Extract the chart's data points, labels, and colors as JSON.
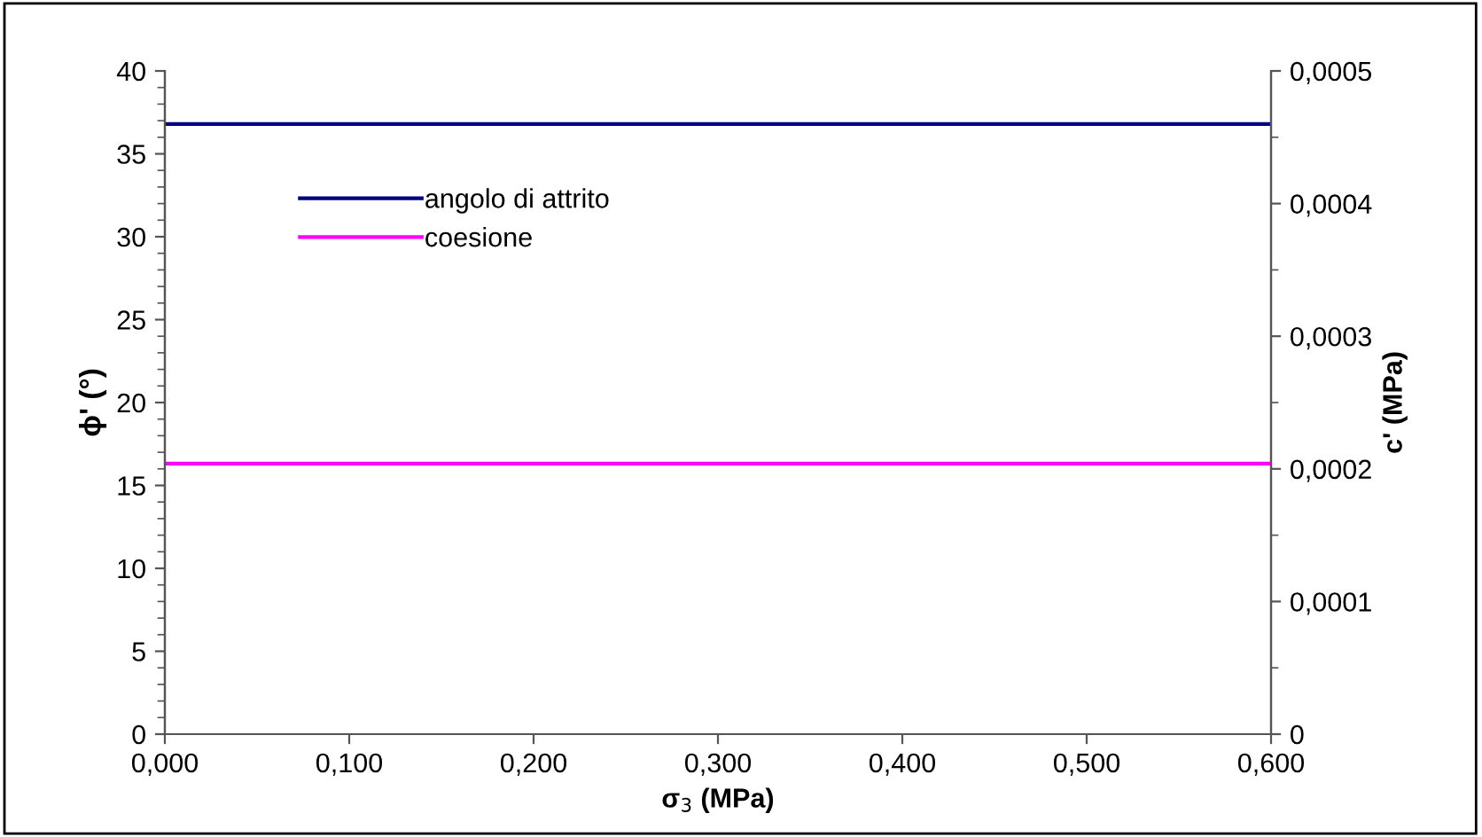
{
  "chart_data": {
    "type": "line",
    "xlabel": "σ$_{3}$ (MPa)",
    "ylabel": "ϕ' (°)",
    "y2label": "c' (MPa)",
    "x": [
      0,
      0.6
    ],
    "series": [
      {
        "name": "angolo di attrito",
        "color": "#000080",
        "values": [
          36.8,
          36.8
        ],
        "line_style": "solid"
      },
      {
        "name": "coesione",
        "color": "#ff00ff",
        "values": [
          0.000204,
          0.000204
        ],
        "axis": "y2",
        "line_style": "solid"
      }
    ],
    "xlim": [
      0,
      0.6
    ],
    "xticks": [
      {
        "value": 0,
        "label": "0,000"
      },
      {
        "value": 0.1,
        "label": "0,100"
      },
      {
        "value": 0.2,
        "label": "0,200"
      },
      {
        "value": 0.3,
        "label": "0,300"
      },
      {
        "value": 0.4,
        "label": "0,400"
      },
      {
        "value": 0.5,
        "label": "0,500"
      },
      {
        "value": 0.6,
        "label": "0,600"
      }
    ],
    "ylim": [
      0,
      40
    ],
    "yticks": [
      0,
      5,
      10,
      15,
      20,
      25,
      30,
      35,
      40
    ],
    "y2lim": [
      0,
      0.0005
    ],
    "y2ticks": [
      0,
      {
        "value": 0.0001,
        "label": "0,0001"
      },
      {
        "value": 0.0002,
        "label": "0,0002"
      },
      {
        "value": 0.0003,
        "label": "0,0003"
      },
      {
        "value": 0.0004,
        "label": "0,0004"
      },
      {
        "value": 0.0005,
        "label": "0,0005"
      }
    ],
    "grid": false,
    "legend": "top left",
    "marker": "none"
  }
}
